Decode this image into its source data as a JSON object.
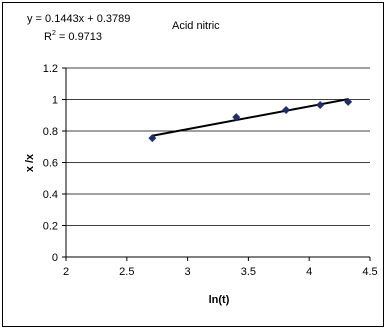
{
  "chart_data": {
    "type": "scatter",
    "annotations": {
      "equation": "y = 0.1443x + 0.3789",
      "r2_prefix": "R",
      "r2_sup": "2",
      "r2_value": " = 0.9713",
      "label": "Acid nitric"
    },
    "xlabel": "ln(t)",
    "ylabel": "x /x",
    "xlim": [
      2,
      4.5
    ],
    "ylim": [
      0,
      1.2
    ],
    "xticks": [
      2,
      2.5,
      3,
      3.5,
      4,
      4.5
    ],
    "xtick_labels": [
      "2",
      "2.5",
      "3",
      "3.5",
      "4",
      "4.5"
    ],
    "yticks": [
      0,
      0.2,
      0.4,
      0.6,
      0.8,
      1,
      1.2
    ],
    "ytick_labels": [
      "0",
      "0.2",
      "0.4",
      "0.6",
      "0.8",
      "1",
      "1.2"
    ],
    "grid": true,
    "series": [
      {
        "x": [
          2.71,
          3.4,
          3.81,
          4.09,
          4.32
        ],
        "y": [
          0.755,
          0.888,
          0.933,
          0.965,
          0.985
        ],
        "color": "#1f2f6b"
      }
    ],
    "trendline": {
      "slope": 0.1443,
      "intercept": 0.3789,
      "x_range": [
        2.71,
        4.32
      ],
      "color": "#000000"
    }
  }
}
